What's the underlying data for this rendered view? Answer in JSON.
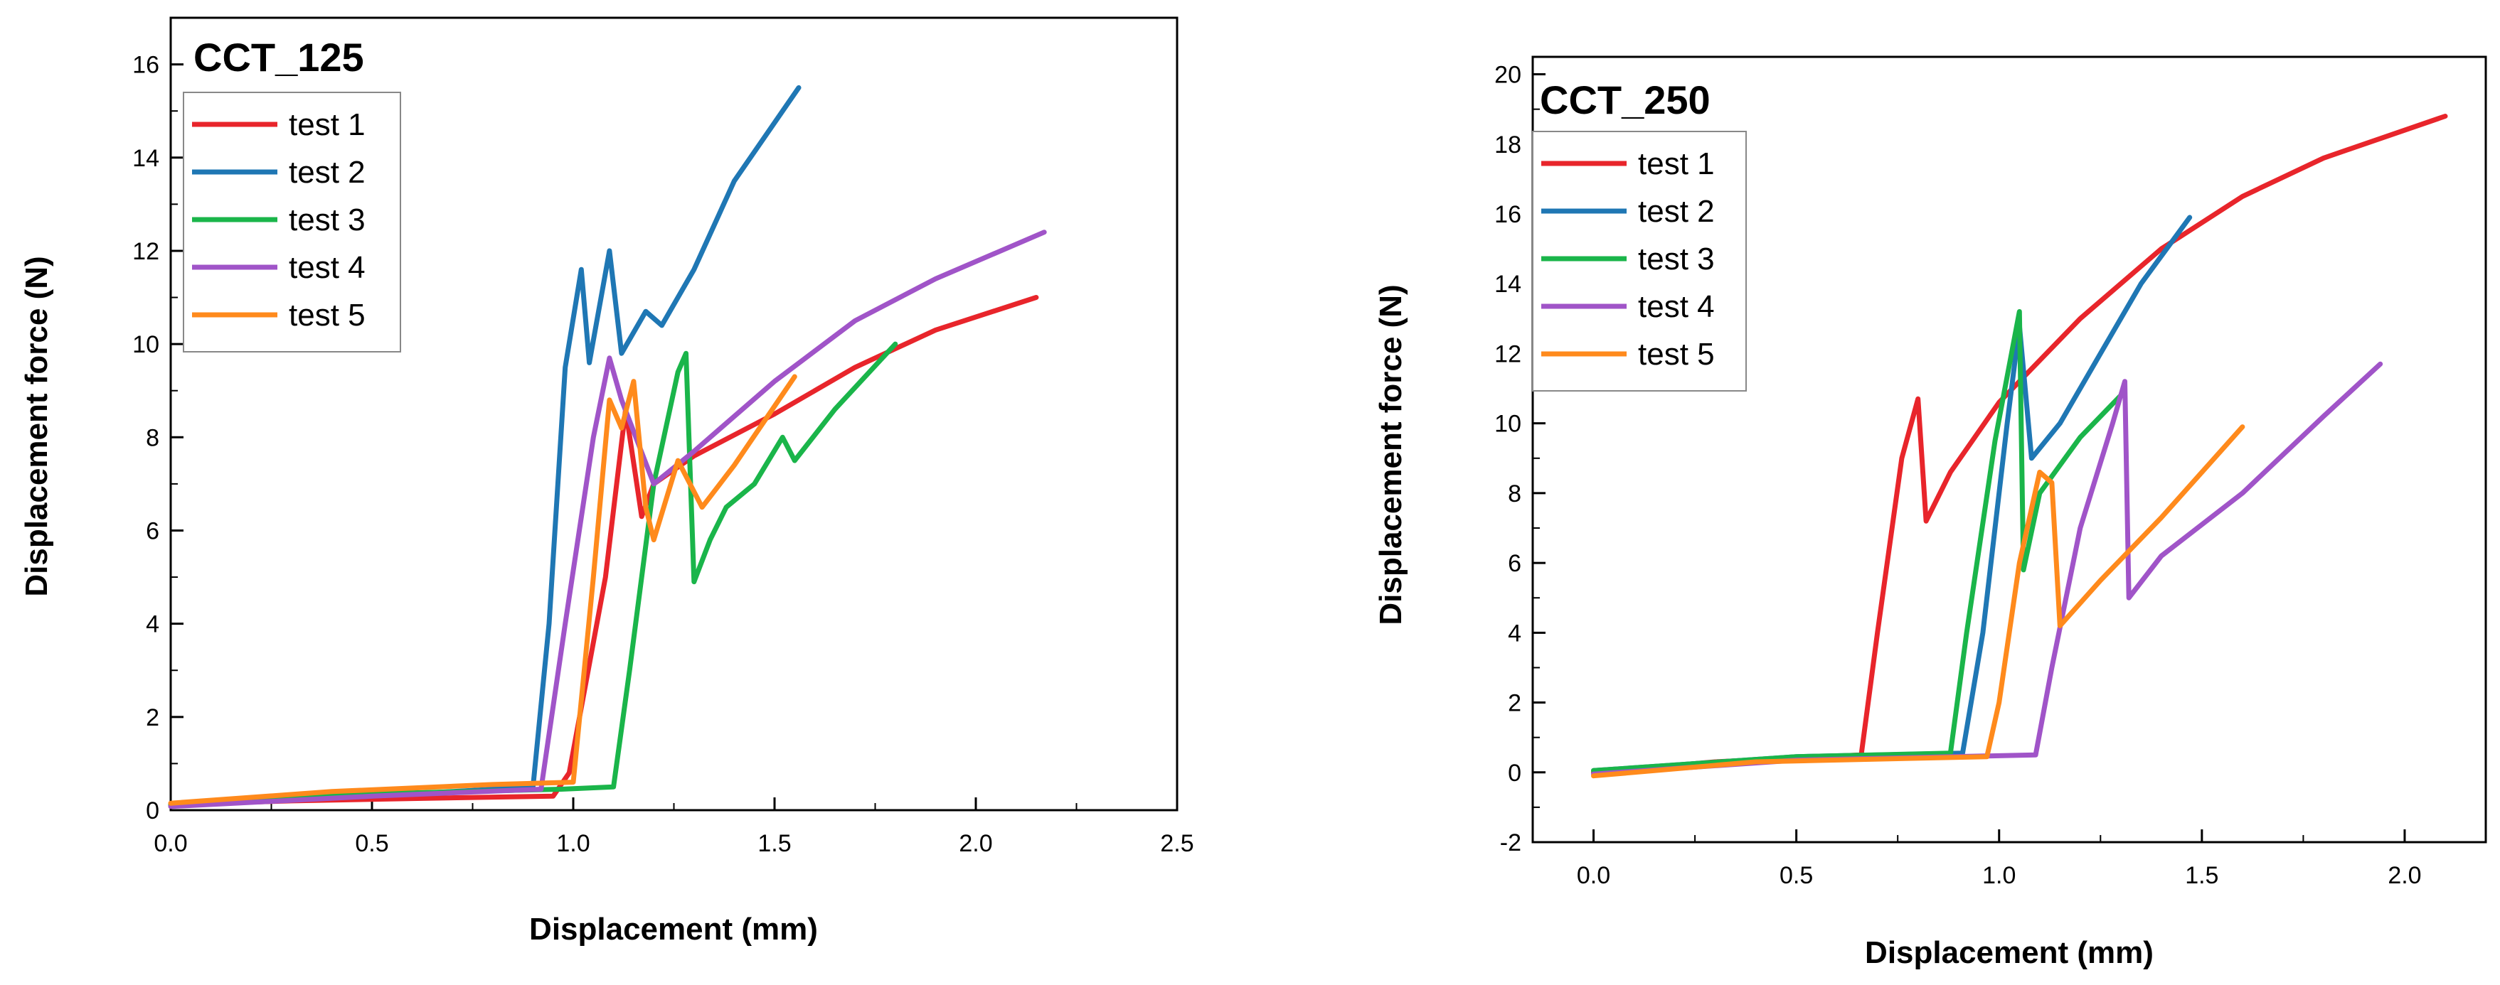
{
  "chart_data": [
    {
      "type": "line",
      "title": "CCT_125",
      "xlabel": "Displacement (mm)",
      "ylabel": "Displacement force (N)",
      "xlim": [
        0,
        2.5
      ],
      "ylim": [
        0,
        17
      ],
      "xticks": [
        0.0,
        0.5,
        1.0,
        1.5,
        2.0,
        2.5
      ],
      "xtick_labels": [
        "0.0",
        "0.5",
        "1.0",
        "1.5",
        "2.0",
        "2.5"
      ],
      "yticks": [
        0,
        2,
        4,
        6,
        8,
        10,
        12,
        14,
        16
      ],
      "ytick_labels": [
        "0",
        "2",
        "4",
        "6",
        "8",
        "10",
        "12",
        "14",
        "16"
      ],
      "legend_position": "top-left",
      "series": [
        {
          "name": "test 1",
          "color": "#e8252b",
          "points": [
            [
              0,
              0.12
            ],
            [
              0.3,
              0.2
            ],
            [
              0.6,
              0.25
            ],
            [
              0.95,
              0.3
            ],
            [
              0.99,
              0.8
            ],
            [
              1.08,
              5
            ],
            [
              1.13,
              8.6
            ],
            [
              1.17,
              6.3
            ],
            [
              1.2,
              7.0
            ],
            [
              1.3,
              7.6
            ],
            [
              1.5,
              8.5
            ],
            [
              1.7,
              9.5
            ],
            [
              1.9,
              10.3
            ],
            [
              2.15,
              11.0
            ]
          ]
        },
        {
          "name": "test 2",
          "color": "#1f77b4",
          "points": [
            [
              0,
              0.1
            ],
            [
              0.5,
              0.3
            ],
            [
              0.9,
              0.5
            ],
            [
              0.94,
              4
            ],
            [
              0.98,
              9.5
            ],
            [
              1.02,
              11.6
            ],
            [
              1.04,
              9.6
            ],
            [
              1.09,
              12.0
            ],
            [
              1.12,
              9.8
            ],
            [
              1.18,
              10.7
            ],
            [
              1.22,
              10.4
            ],
            [
              1.3,
              11.6
            ],
            [
              1.4,
              13.5
            ],
            [
              1.56,
              15.5
            ]
          ]
        },
        {
          "name": "test 3",
          "color": "#1ab54a",
          "points": [
            [
              0,
              0.12
            ],
            [
              0.5,
              0.35
            ],
            [
              0.97,
              0.45
            ],
            [
              1.1,
              0.5
            ],
            [
              1.14,
              3
            ],
            [
              1.2,
              7
            ],
            [
              1.26,
              9.4
            ],
            [
              1.28,
              9.8
            ],
            [
              1.3,
              4.9
            ],
            [
              1.34,
              5.8
            ],
            [
              1.38,
              6.5
            ],
            [
              1.45,
              7.0
            ],
            [
              1.52,
              8.0
            ],
            [
              1.55,
              7.5
            ],
            [
              1.65,
              8.6
            ],
            [
              1.8,
              10.0
            ]
          ]
        },
        {
          "name": "test 4",
          "color": "#a054c8",
          "points": [
            [
              0,
              0.08
            ],
            [
              0.5,
              0.3
            ],
            [
              0.92,
              0.45
            ],
            [
              0.98,
              4
            ],
            [
              1.05,
              8
            ],
            [
              1.09,
              9.7
            ],
            [
              1.12,
              8.8
            ],
            [
              1.2,
              7.0
            ],
            [
              1.3,
              7.7
            ],
            [
              1.5,
              9.2
            ],
            [
              1.7,
              10.5
            ],
            [
              1.9,
              11.4
            ],
            [
              2.17,
              12.4
            ]
          ]
        },
        {
          "name": "test 5",
          "color": "#ff8a1c",
          "points": [
            [
              0,
              0.15
            ],
            [
              0.4,
              0.4
            ],
            [
              0.8,
              0.55
            ],
            [
              1.0,
              0.6
            ],
            [
              1.05,
              5
            ],
            [
              1.09,
              8.8
            ],
            [
              1.12,
              8.2
            ],
            [
              1.15,
              9.2
            ],
            [
              1.18,
              6.5
            ],
            [
              1.2,
              5.8
            ],
            [
              1.26,
              7.5
            ],
            [
              1.32,
              6.5
            ],
            [
              1.4,
              7.4
            ],
            [
              1.55,
              9.3
            ]
          ]
        }
      ]
    },
    {
      "type": "line",
      "title": "CCT_250",
      "xlabel": "Displacement (mm)",
      "ylabel": "Displacement force (N)",
      "xlim": [
        -0.15,
        2.2
      ],
      "ylim": [
        -2,
        20.5
      ],
      "xticks": [
        0.0,
        0.5,
        1.0,
        1.5,
        2.0
      ],
      "xtick_labels": [
        "0.0",
        "0.5",
        "1.0",
        "1.5",
        "2.0"
      ],
      "yticks": [
        -2,
        0,
        2,
        4,
        6,
        8,
        10,
        12,
        14,
        16,
        18,
        20
      ],
      "ytick_labels": [
        "-2",
        "0",
        "2",
        "4",
        "6",
        "8",
        "10",
        "12",
        "14",
        "16",
        "18",
        "20"
      ],
      "legend_position": "top-left",
      "series": [
        {
          "name": "test 1",
          "color": "#e8252b",
          "points": [
            [
              0,
              0
            ],
            [
              0.3,
              0.3
            ],
            [
              0.66,
              0.5
            ],
            [
              0.7,
              4
            ],
            [
              0.76,
              9
            ],
            [
              0.8,
              10.7
            ],
            [
              0.82,
              7.2
            ],
            [
              0.88,
              8.6
            ],
            [
              1.0,
              10.6
            ],
            [
              1.2,
              13.0
            ],
            [
              1.4,
              15.0
            ],
            [
              1.6,
              16.5
            ],
            [
              1.8,
              17.6
            ],
            [
              2.1,
              18.8
            ]
          ]
        },
        {
          "name": "test 2",
          "color": "#1f77b4",
          "points": [
            [
              0,
              0.05
            ],
            [
              0.5,
              0.45
            ],
            [
              0.91,
              0.55
            ],
            [
              0.96,
              4
            ],
            [
              1.02,
              10
            ],
            [
              1.05,
              12.8
            ],
            [
              1.08,
              9
            ],
            [
              1.15,
              10
            ],
            [
              1.25,
              12
            ],
            [
              1.35,
              14
            ],
            [
              1.47,
              15.9
            ]
          ]
        },
        {
          "name": "test 3",
          "color": "#1ab54a",
          "points": [
            [
              0,
              0.05
            ],
            [
              0.5,
              0.45
            ],
            [
              0.88,
              0.55
            ],
            [
              0.92,
              4
            ],
            [
              0.99,
              9.5
            ],
            [
              1.05,
              13.2
            ],
            [
              1.06,
              5.8
            ],
            [
              1.1,
              8
            ],
            [
              1.2,
              9.6
            ],
            [
              1.3,
              10.8
            ]
          ]
        },
        {
          "name": "test 4",
          "color": "#a054c8",
          "points": [
            [
              0,
              -0.05
            ],
            [
              0.5,
              0.35
            ],
            [
              1.09,
              0.5
            ],
            [
              1.13,
              3
            ],
            [
              1.2,
              7
            ],
            [
              1.28,
              10
            ],
            [
              1.31,
              11.2
            ],
            [
              1.32,
              5.0
            ],
            [
              1.4,
              6.2
            ],
            [
              1.6,
              8
            ],
            [
              1.8,
              10.2
            ],
            [
              1.94,
              11.7
            ]
          ]
        },
        {
          "name": "test 5",
          "color": "#ff8a1c",
          "points": [
            [
              0,
              -0.1
            ],
            [
              0.4,
              0.3
            ],
            [
              0.97,
              0.45
            ],
            [
              1.0,
              2
            ],
            [
              1.05,
              6
            ],
            [
              1.1,
              8.6
            ],
            [
              1.13,
              8.3
            ],
            [
              1.15,
              4.2
            ],
            [
              1.25,
              5.5
            ],
            [
              1.4,
              7.3
            ],
            [
              1.6,
              9.9
            ]
          ]
        }
      ]
    }
  ]
}
